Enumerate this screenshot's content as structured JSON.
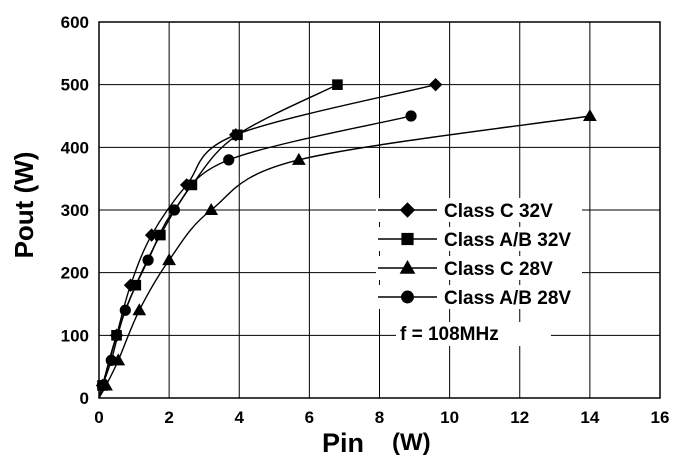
{
  "chart_data": {
    "type": "line",
    "xlabel": "Pin",
    "xlabel_unit": "(W)",
    "ylabel": "Pout  (W)",
    "xlim": [
      0,
      16
    ],
    "ylim": [
      0,
      600
    ],
    "xticks": [
      "0",
      "2",
      "4",
      "6",
      "8",
      "10",
      "12",
      "14",
      "16"
    ],
    "yticks": [
      "0",
      "100",
      "200",
      "300",
      "400",
      "500",
      "600"
    ],
    "grid": true,
    "legend_position": "right",
    "annotation": "f  = 108MHz",
    "series": [
      {
        "name": "Class C 32V",
        "marker": "diamond",
        "points": [
          [
            0.1,
            20
          ],
          [
            0.5,
            100
          ],
          [
            0.9,
            180
          ],
          [
            1.5,
            260
          ],
          [
            2.5,
            340
          ],
          [
            3.9,
            420
          ],
          [
            9.6,
            500
          ]
        ]
      },
      {
        "name": "Class A/B 32V",
        "marker": "square",
        "points": [
          [
            0.1,
            20
          ],
          [
            0.5,
            100
          ],
          [
            1.05,
            180
          ],
          [
            1.75,
            260
          ],
          [
            2.65,
            340
          ],
          [
            3.95,
            420
          ],
          [
            6.8,
            500
          ]
        ]
      },
      {
        "name": "Class C 28V",
        "marker": "triangle",
        "points": [
          [
            0.2,
            20
          ],
          [
            0.55,
            60
          ],
          [
            1.15,
            140
          ],
          [
            2.0,
            220
          ],
          [
            3.2,
            300
          ],
          [
            5.7,
            380
          ],
          [
            14.0,
            450
          ]
        ]
      },
      {
        "name": "Class A/B 28V",
        "marker": "circle",
        "points": [
          [
            0.1,
            20
          ],
          [
            0.35,
            60
          ],
          [
            0.75,
            140
          ],
          [
            1.4,
            220
          ],
          [
            2.15,
            300
          ],
          [
            3.7,
            380
          ],
          [
            8.9,
            450
          ]
        ]
      }
    ]
  }
}
